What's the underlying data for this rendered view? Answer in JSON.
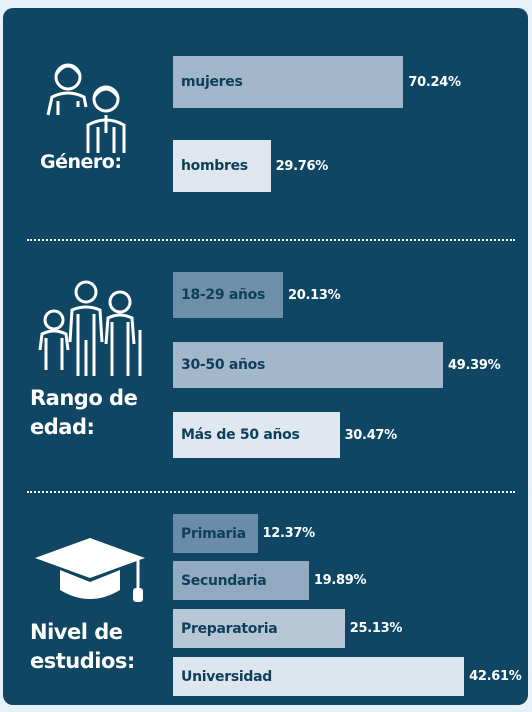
{
  "chart_data": [
    {
      "type": "bar",
      "orientation": "horizontal",
      "title": "Género:",
      "categories": [
        "mujeres",
        "hombres"
      ],
      "values": [
        70.24,
        29.76
      ],
      "value_labels": [
        "70.24%",
        "29.76%"
      ],
      "colors": [
        "#a2b5c9",
        "#dfe6ee"
      ],
      "xlim": [
        0,
        100
      ]
    },
    {
      "type": "bar",
      "orientation": "horizontal",
      "title": "Rango de edad:",
      "categories": [
        "18-29 años",
        "30-50 años",
        "Más de 50 años"
      ],
      "values": [
        20.13,
        49.39,
        30.47
      ],
      "value_labels": [
        "20.13%",
        "49.39%",
        "30.47%"
      ],
      "colors": [
        "#6f8fa8",
        "#a3b7ca",
        "#e0e7ef"
      ],
      "xlim": [
        0,
        60
      ]
    },
    {
      "type": "bar",
      "orientation": "horizontal",
      "title": "Nivel de estudios:",
      "categories": [
        "Primaria",
        "Secundaria",
        "Preparatoria",
        "Universidad"
      ],
      "values": [
        12.37,
        19.89,
        25.13,
        42.61
      ],
      "value_labels": [
        "12.37%",
        "19.89%",
        "25.13%",
        "42.61%"
      ],
      "colors": [
        "#6b8ca6",
        "#92aac0",
        "#b7c7d6",
        "#dde5ee"
      ],
      "xlim": [
        0,
        48
      ]
    }
  ]
}
